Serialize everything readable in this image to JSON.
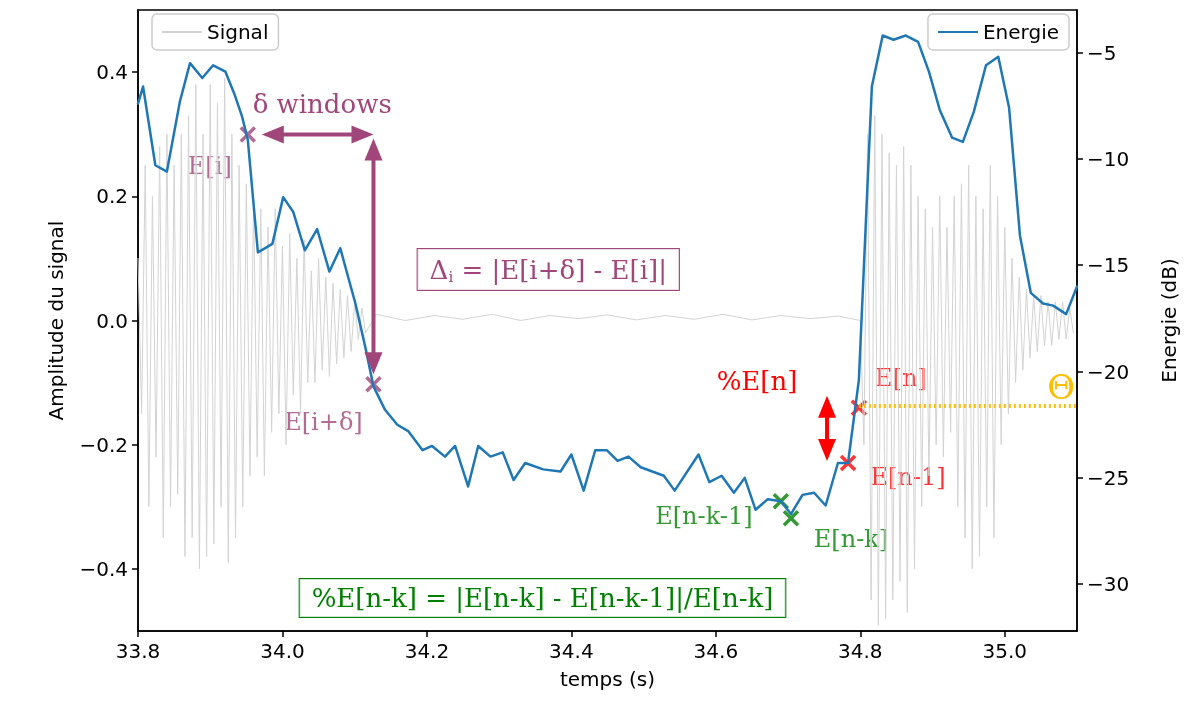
{
  "chart_data": {
    "type": "line",
    "xlabel": "temps (s)",
    "ylabel": "Amplitude du signal",
    "y2label": "Energie (dB)",
    "xlim": [
      33.8,
      35.1
    ],
    "xticks": [
      33.8,
      {
        "value": 34.0,
        "label": "34.0"
      },
      34.2,
      34.4,
      34.6,
      34.8,
      {
        "value": 35.0,
        "label": "35.0"
      }
    ],
    "ylim": [
      -0.5,
      0.5
    ],
    "yticks": [
      {
        "value": -0.4,
        "label": "−0.4"
      },
      {
        "value": -0.2,
        "label": "−0.2"
      },
      {
        "value": 0,
        "label": "0.0"
      },
      0.2,
      0.4
    ],
    "y2lim": [
      -32.2,
      -3.0
    ],
    "y2ticks": [
      {
        "value": -30,
        "label": "−30"
      },
      {
        "value": -25,
        "label": "−25"
      },
      {
        "value": -20,
        "label": "−20"
      },
      {
        "value": -15,
        "label": "−15"
      },
      {
        "value": -10,
        "label": "−10"
      },
      {
        "value": -5,
        "label": "−5"
      }
    ],
    "grid": false,
    "legend": "top",
    "series": [
      {
        "name": "Signal",
        "color": "#d3d3d3",
        "x": [
          33.8,
          33.805,
          33.81,
          33.815,
          33.82,
          33.825,
          33.83,
          33.835,
          33.84,
          33.845,
          33.85,
          33.855,
          33.86,
          33.865,
          33.87,
          33.875,
          33.88,
          33.885,
          33.89,
          33.895,
          33.9,
          33.905,
          33.91,
          33.915,
          33.92,
          33.925,
          33.93,
          33.935,
          33.94,
          33.945,
          33.95,
          33.955,
          33.96,
          33.965,
          33.97,
          33.975,
          33.98,
          33.985,
          33.99,
          33.995,
          34.0,
          34.005,
          34.01,
          34.015,
          34.02,
          34.025,
          34.03,
          34.035,
          34.04,
          34.045,
          34.05,
          34.055,
          34.06,
          34.065,
          34.07,
          34.075,
          34.08,
          34.085,
          34.09,
          34.095,
          34.1,
          34.105,
          34.11,
          34.115,
          34.13,
          34.17,
          34.21,
          34.25,
          34.29,
          34.33,
          34.37,
          34.41,
          34.45,
          34.49,
          34.53,
          34.57,
          34.61,
          34.65,
          34.69,
          34.73,
          34.77,
          34.8,
          34.805,
          34.81,
          34.815,
          34.82,
          34.825,
          34.83,
          34.835,
          34.84,
          34.845,
          34.85,
          34.855,
          34.86,
          34.865,
          34.87,
          34.875,
          34.88,
          34.885,
          34.89,
          34.895,
          34.9,
          34.905,
          34.91,
          34.915,
          34.92,
          34.925,
          34.93,
          34.935,
          34.94,
          34.945,
          34.95,
          34.955,
          34.96,
          34.965,
          34.97,
          34.975,
          34.98,
          34.985,
          34.99,
          34.995,
          35.0,
          35.005,
          35.01,
          35.015,
          35.02,
          35.025,
          35.03,
          35.035,
          35.04,
          35.045,
          35.05,
          35.055,
          35.06,
          35.065,
          35.07,
          35.075,
          35.08,
          35.085,
          35.09,
          35.095
        ],
        "values": [
          0.1,
          -0.15,
          0.25,
          -0.3,
          0.2,
          -0.22,
          0.28,
          -0.35,
          0.3,
          -0.3,
          0.25,
          -0.28,
          0.3,
          -0.38,
          0.33,
          -0.35,
          0.38,
          -0.4,
          0.3,
          -0.38,
          0.38,
          -0.36,
          0.35,
          -0.3,
          0.39,
          -0.39,
          0.3,
          -0.35,
          0.25,
          -0.3,
          0.22,
          -0.25,
          0.2,
          -0.22,
          0.18,
          -0.25,
          0.15,
          -0.18,
          0.18,
          -0.15,
          0.12,
          -0.2,
          0.14,
          -0.12,
          0.1,
          -0.15,
          0.13,
          -0.1,
          0.08,
          -0.1,
          0.1,
          -0.08,
          0.07,
          -0.09,
          0.06,
          -0.07,
          0.05,
          -0.06,
          0.04,
          -0.05,
          0.03,
          -0.03,
          0.02,
          -0.02,
          0.01,
          0,
          0.008,
          0.002,
          0.01,
          0,
          0.008,
          0.003,
          0.009,
          0.001,
          0.008,
          0.002,
          0.01,
          0.001,
          0.008,
          0.003,
          0.007,
          0.0,
          -0.2,
          0.3,
          -0.45,
          0.33,
          -0.49,
          0.3,
          -0.48,
          0.27,
          -0.45,
          0.25,
          -0.42,
          0.28,
          -0.47,
          0.25,
          -0.4,
          0.2,
          -0.3,
          0.18,
          -0.25,
          0.15,
          -0.2,
          0.2,
          -0.22,
          0.15,
          -0.18,
          0.2,
          -0.3,
          0.22,
          -0.35,
          0.25,
          -0.4,
          0.2,
          -0.38,
          0.18,
          -0.3,
          0.25,
          -0.35,
          0.2,
          -0.2,
          0.15,
          -0.15,
          0.1,
          -0.1,
          0.07,
          -0.08,
          0.05,
          -0.06,
          0.04,
          -0.05,
          0.04,
          -0.04,
          0.03,
          -0.04,
          0.03,
          -0.03,
          0.03,
          -0.03,
          0.02,
          -0.02
        ]
      },
      {
        "name": "Energie",
        "color": "#1f77b4",
        "axis": "y2",
        "x": [
          33.8,
          33.807,
          33.824,
          33.84,
          33.858,
          33.872,
          33.889,
          33.904,
          33.921,
          33.934,
          33.944,
          33.952,
          33.966,
          33.986,
          34.001,
          34.015,
          34.031,
          34.048,
          34.065,
          34.08,
          34.101,
          34.115,
          34.126,
          34.142,
          34.159,
          34.174,
          34.194,
          34.207,
          34.225,
          34.239,
          34.257,
          34.271,
          34.288,
          34.305,
          34.32,
          34.336,
          34.361,
          34.385,
          34.4,
          34.417,
          34.433,
          34.449,
          34.464,
          34.479,
          34.496,
          34.528,
          34.543,
          34.576,
          34.591,
          34.608,
          34.625,
          34.64,
          34.655,
          34.672,
          34.69,
          34.704,
          34.72,
          34.736,
          34.752,
          34.769,
          34.783,
          34.798,
          34.816,
          34.831,
          34.846,
          34.863,
          34.88,
          34.895,
          34.91,
          34.927,
          34.942,
          34.957,
          34.974,
          34.991,
          35.006,
          35.021,
          35.036,
          35.053,
          35.067,
          35.085,
          35.1
        ],
        "values": [
          -7.4,
          -6.6,
          -10.3,
          -10.6,
          -7.3,
          -5.5,
          -6.2,
          -5.6,
          -5.9,
          -7.0,
          -8.0,
          -9.1,
          -14.4,
          -14.0,
          -11.8,
          -12.5,
          -14.3,
          -13.3,
          -15.3,
          -14.2,
          -16.8,
          -18.9,
          -20.7,
          -21.8,
          -22.5,
          -22.8,
          -23.7,
          -23.5,
          -24.0,
          -23.5,
          -25.4,
          -23.5,
          -24.0,
          -23.8,
          -25.1,
          -24.3,
          -24.6,
          -24.7,
          -23.9,
          -25.6,
          -23.7,
          -23.7,
          -24.2,
          -24.0,
          -24.5,
          -24.9,
          -25.6,
          -23.9,
          -25.2,
          -24.9,
          -25.7,
          -25.0,
          -26.5,
          -26.0,
          -26.1,
          -26.7,
          -25.8,
          -25.7,
          -26.3,
          -24.3,
          -24.3,
          -20.4,
          -6.6,
          -4.2,
          -4.4,
          -4.2,
          -4.5,
          -5.9,
          -7.7,
          -9.0,
          -9.2,
          -7.8,
          -5.6,
          -5.2,
          -7.6,
          -13.6,
          -16.3,
          -16.8,
          -16.9,
          -17.3,
          -16.0
        ]
      },
      {
        "type": "scatter",
        "marker": "cross",
        "axis": "y2",
        "name": "E[i]",
        "color": "#a0467a",
        "x": [
          33.952
        ],
        "values": [
          -8.85
        ]
      },
      {
        "type": "scatter",
        "marker": "cross",
        "axis": "y2",
        "name": "E[i+δ]",
        "color": "#a0467a",
        "x": [
          34.126
        ],
        "values": [
          -20.6
        ]
      },
      {
        "type": "scatter",
        "marker": "cross",
        "axis": "y2",
        "name": "E[n]",
        "color": "#ff0000",
        "x": [
          34.798
        ],
        "values": [
          -21.7
        ]
      },
      {
        "type": "scatter",
        "marker": "cross",
        "axis": "y2",
        "name": "E[n-1]",
        "color": "#ff0000",
        "x": [
          34.783
        ],
        "values": [
          -24.3
        ]
      },
      {
        "type": "scatter",
        "marker": "cross",
        "axis": "y2",
        "name": "E[n-k-1]",
        "color": "#008000",
        "x": [
          34.69
        ],
        "values": [
          -26.1
        ]
      },
      {
        "type": "scatter",
        "marker": "cross",
        "axis": "y2",
        "name": "E[n-k]",
        "color": "#008000",
        "x": [
          34.704
        ],
        "values": [
          -26.9
        ]
      }
    ],
    "ref_lines": [
      {
        "axis": "y2",
        "value": -21.6,
        "label": "Θ",
        "color": "#ffbf00",
        "line_style": "dotted"
      }
    ],
    "annotations": [
      "δ windows",
      "Δ$_{i}$ = |E[i+δ] - E[i]|",
      "%E[n]",
      "%E[n-k] = |E[n-k] - E[n-k-1]|/E[n-k]"
    ]
  }
}
